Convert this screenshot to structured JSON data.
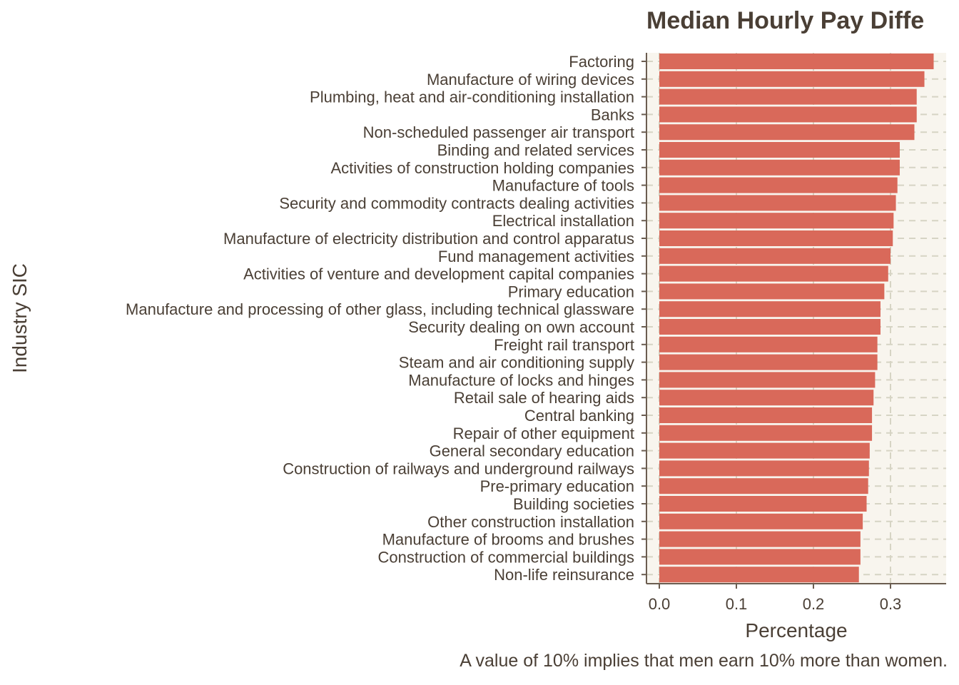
{
  "chart_data": {
    "type": "bar",
    "orientation": "horizontal",
    "title": "Median Hourly Pay Diffe",
    "xlabel": "Percentage",
    "ylabel": "Industry SIC",
    "caption": "A value of 10% implies that men earn 10% more than women.",
    "xlim": [
      -0.018,
      0.37
    ],
    "xticks": [
      0.0,
      0.1,
      0.2,
      0.3
    ],
    "xtick_labels": [
      "0.0",
      "0.1",
      "0.2",
      "0.3"
    ],
    "grid": true,
    "bar_color": "#d9695a",
    "panel_color": "#f8f5ee",
    "grid_color": "#d6d4c4",
    "axis_color": "#6b5d50",
    "categories": [
      "Factoring",
      "Manufacture of wiring devices",
      "Plumbing, heat and air-conditioning installation",
      "Banks",
      "Non-scheduled passenger air transport",
      "Binding and related services",
      "Activities of construction holding companies",
      "Manufacture of tools",
      "Security and commodity contracts dealing activities",
      "Electrical installation",
      "Manufacture of electricity distribution and control apparatus",
      "Fund management activities",
      "Activities of venture and development capital companies",
      "Primary education",
      "Manufacture and processing of other glass, including technical glassware",
      "Security dealing on own account",
      "Freight rail transport",
      "Steam and air conditioning supply",
      "Manufacture of locks and hinges",
      "Retail sale of hearing aids",
      "Central banking",
      "Repair of other equipment",
      "General secondary education",
      "Construction of railways and underground railways",
      "Pre-primary education",
      "Building societies",
      "Other construction installation",
      "Manufacture of brooms and brushes",
      "Construction of commercial buildings",
      "Non-life reinsurance"
    ],
    "values": [
      0.356,
      0.344,
      0.334,
      0.334,
      0.331,
      0.312,
      0.312,
      0.309,
      0.307,
      0.304,
      0.303,
      0.3,
      0.297,
      0.292,
      0.287,
      0.287,
      0.283,
      0.283,
      0.28,
      0.278,
      0.276,
      0.276,
      0.273,
      0.272,
      0.271,
      0.269,
      0.264,
      0.261,
      0.261,
      0.259
    ]
  }
}
